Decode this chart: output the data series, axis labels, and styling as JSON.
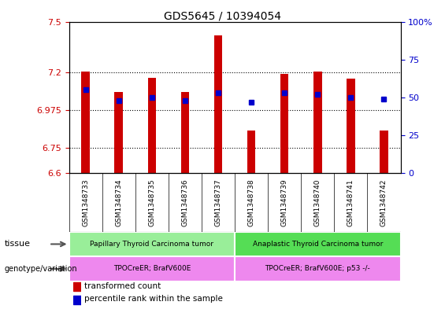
{
  "title": "GDS5645 / 10394054",
  "samples": [
    "GSM1348733",
    "GSM1348734",
    "GSM1348735",
    "GSM1348736",
    "GSM1348737",
    "GSM1348738",
    "GSM1348739",
    "GSM1348740",
    "GSM1348741",
    "GSM1348742"
  ],
  "bar_values": [
    7.205,
    7.08,
    7.165,
    7.08,
    7.42,
    6.855,
    7.19,
    7.205,
    7.16,
    6.855
  ],
  "percentile_values": [
    55,
    48,
    50,
    48,
    53,
    47,
    53,
    52,
    50,
    49
  ],
  "ylim_left": [
    6.6,
    7.5
  ],
  "ylim_right": [
    0,
    100
  ],
  "yticks_left": [
    6.6,
    6.75,
    6.975,
    7.2,
    7.5
  ],
  "ytick_labels_left": [
    "6.6",
    "6.75",
    "6.975",
    "7.2",
    "7.5"
  ],
  "yticks_right": [
    0,
    25,
    50,
    75,
    100
  ],
  "ytick_labels_right": [
    "0",
    "25",
    "50",
    "75",
    "100%"
  ],
  "bar_color": "#cc0000",
  "marker_color": "#0000cc",
  "bar_bottom": 6.6,
  "tissue_groups": [
    {
      "label": "Papillary Thyroid Carcinoma tumor",
      "start": 0,
      "end": 5,
      "color": "#99ee99"
    },
    {
      "label": "Anaplastic Thyroid Carcinoma tumor",
      "start": 5,
      "end": 10,
      "color": "#55dd55"
    }
  ],
  "genotype_groups": [
    {
      "label": "TPOCreER; BrafV600E",
      "start": 0,
      "end": 5,
      "color": "#ee88ee"
    },
    {
      "label": "TPOCreER; BrafV600E; p53 -/-",
      "start": 5,
      "end": 10,
      "color": "#ee88ee"
    }
  ],
  "tissue_label": "tissue",
  "genotype_label": "genotype/variation",
  "legend_red_label": "transformed count",
  "legend_blue_label": "percentile rank within the sample",
  "background_color": "#ffffff",
  "plot_bg_color": "#ffffff",
  "title_fontsize": 10,
  "axis_color_left": "#cc0000",
  "axis_color_right": "#0000cc",
  "bar_width": 0.25,
  "sample_bg_color": "#cccccc"
}
